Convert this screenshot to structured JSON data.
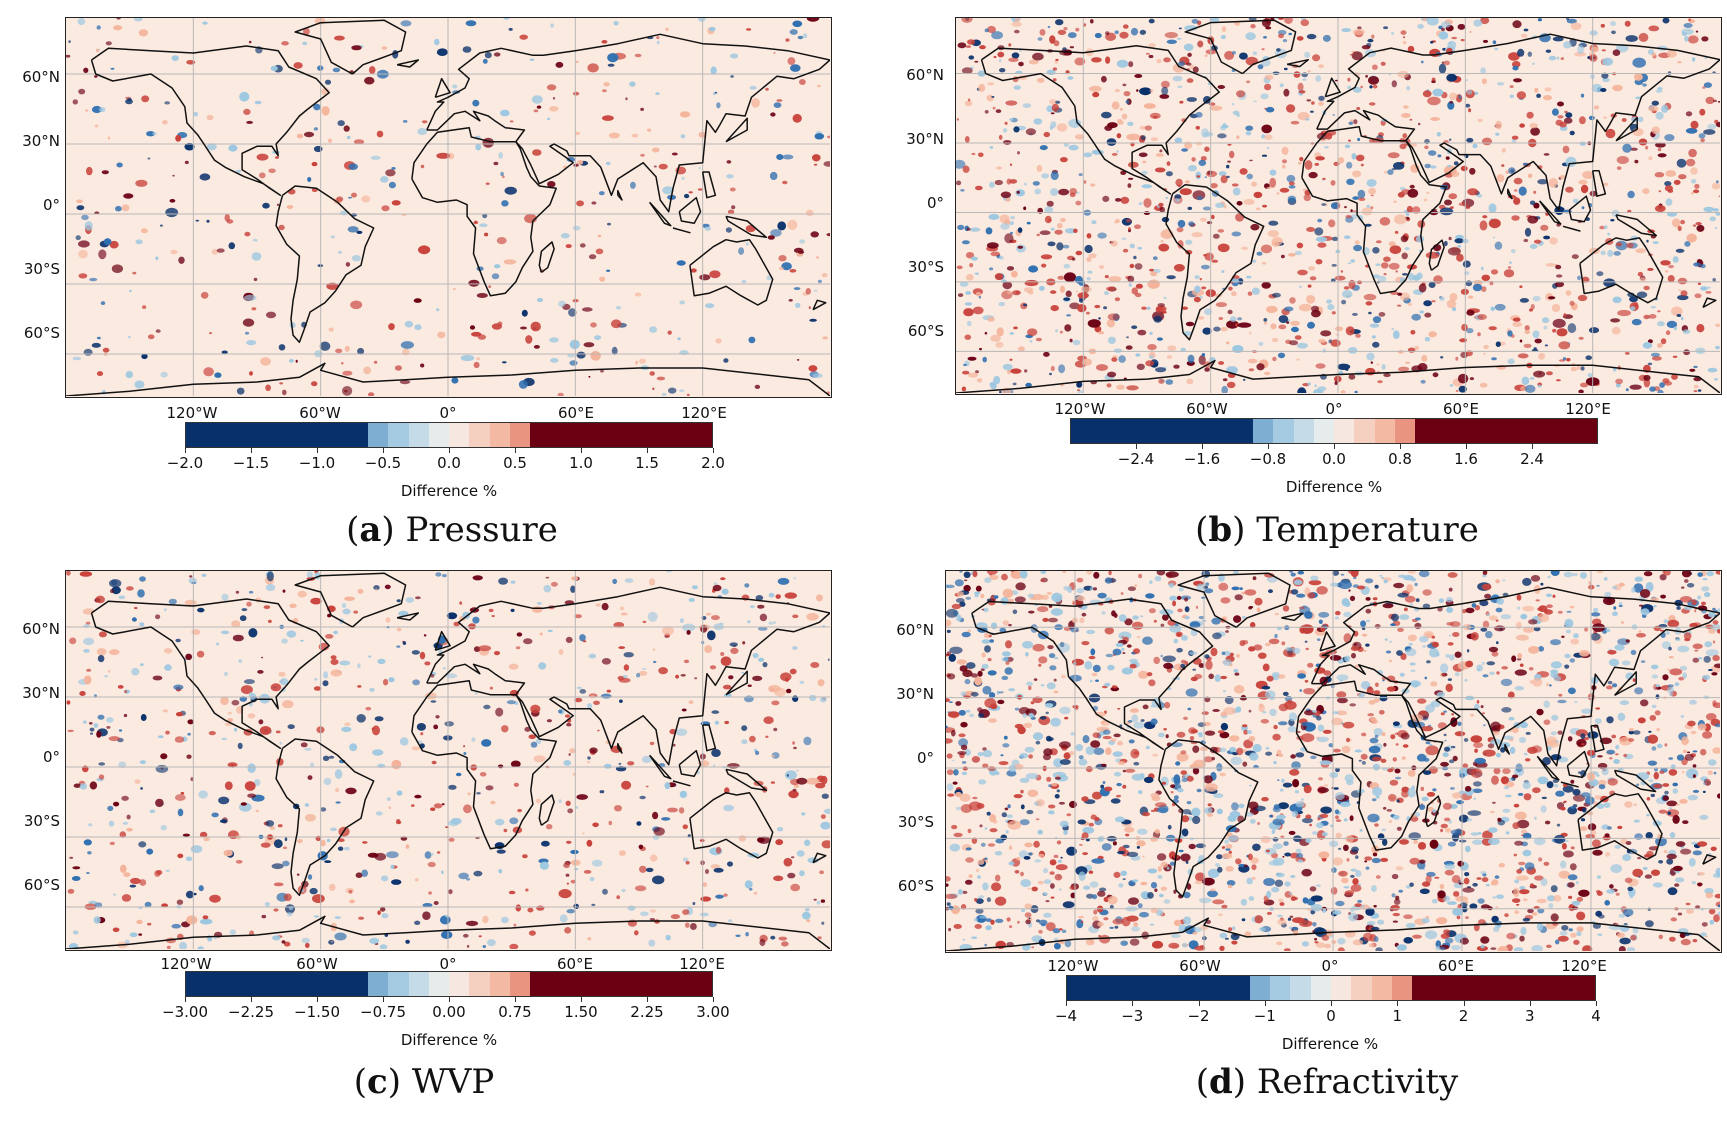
{
  "panels": [
    {
      "letter": "a",
      "title": "Pressure",
      "lat_labels": [
        "60°N",
        "30°N",
        "0°",
        "30°S",
        "60°S"
      ],
      "lon_labels": [
        "120°W",
        "60°W",
        "0°",
        "60°E",
        "120°E"
      ],
      "colorbar": {
        "label": "Difference %",
        "min": -2.0,
        "max": 2.0,
        "ticks": [
          "−2.0",
          "−1.5",
          "−1.0",
          "−0.5",
          "0.0",
          "0.5",
          "1.0",
          "1.5",
          "2.0"
        ]
      },
      "speckle": {
        "density": "low",
        "red_bias": 0.55
      }
    },
    {
      "letter": "b",
      "title": "Temperature",
      "lat_labels": [
        "60°N",
        "30°N",
        "0°",
        "30°S",
        "60°S"
      ],
      "lon_labels": [
        "120°W",
        "60°W",
        "0°",
        "60°E",
        "120°E"
      ],
      "colorbar": {
        "label": "Difference %",
        "min": -3.2,
        "max": 3.2,
        "ticks": [
          "−2.4",
          "−1.6",
          "−0.8",
          "0.0",
          "0.8",
          "1.6",
          "2.4"
        ]
      },
      "speckle": {
        "density": "high",
        "red_bias": 0.6
      }
    },
    {
      "letter": "c",
      "title": "WVP",
      "lat_labels": [
        "60°N",
        "30°N",
        "0°",
        "30°S",
        "60°S"
      ],
      "lon_labels": [
        "120°W",
        "60°W",
        "0°",
        "60°E",
        "120°E"
      ],
      "colorbar": {
        "label": "Difference %",
        "min": -3.0,
        "max": 3.0,
        "ticks": [
          "−3.00",
          "−2.25",
          "−1.50",
          "−0.75",
          "0.00",
          "0.75",
          "1.50",
          "2.25",
          "3.00"
        ]
      },
      "speckle": {
        "density": "medium",
        "red_bias": 0.55
      }
    },
    {
      "letter": "d",
      "title": "Refractivity",
      "lat_labels": [
        "60°N",
        "30°N",
        "0°",
        "30°S",
        "60°S"
      ],
      "lon_labels": [
        "120°W",
        "60°W",
        "0°",
        "60°E",
        "120°E"
      ],
      "colorbar": {
        "label": "Difference %",
        "min": -4,
        "max": 4,
        "ticks": [
          "−4",
          "−3",
          "−2",
          "−1",
          "0",
          "1",
          "2",
          "3",
          "4"
        ]
      },
      "speckle": {
        "density": "very-high",
        "red_bias": 0.5
      }
    }
  ],
  "colors": {
    "blue_dark": "#08306b",
    "blue_mid": "#2f6fb0",
    "blue_light": "#9cc7e0",
    "neutral": "#f7f3ef",
    "red_light": "#f4b39a",
    "red_mid": "#c8413a",
    "red_dark": "#6b0013",
    "background": "#fbeae0",
    "coast": "#111111",
    "grid": "#b8b8b8"
  }
}
